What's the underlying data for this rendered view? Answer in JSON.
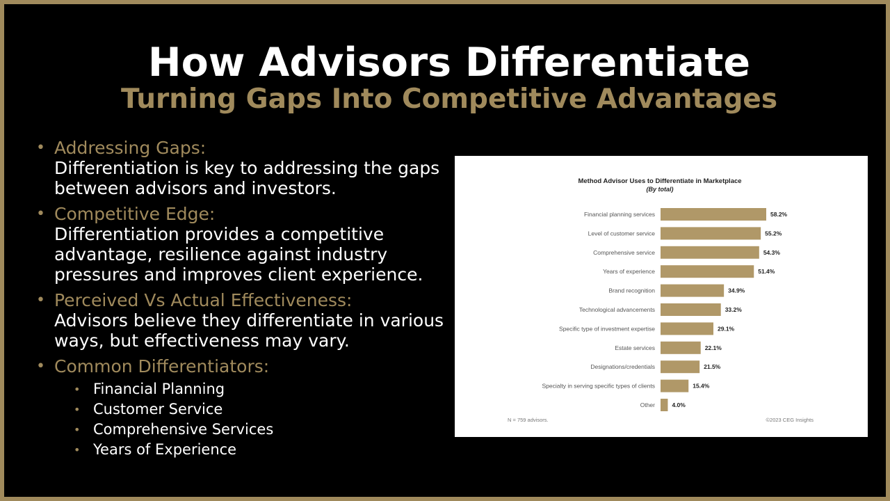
{
  "slide": {
    "title": "How Advisors Differentiate",
    "subtitle": "Turning Gaps Into Competitive Advantages"
  },
  "bullets": [
    {
      "heading": "Addressing Gaps:",
      "text": "Differentiation is key to addressing the gaps between advisors and investors."
    },
    {
      "heading": "Competitive Edge:",
      "text": "Differentiation provides a competitive advantage, resilience against industry pressures and improves client experience."
    },
    {
      "heading": "Perceived Vs Actual Effectiveness:",
      "text": "Advisors believe they differentiate in various ways, but effectiveness may vary."
    },
    {
      "heading": "Common Differentiators:",
      "items": [
        "Financial Planning",
        "Customer Service",
        "Comprehensive Services",
        "Years of Experience"
      ]
    }
  ],
  "colors": {
    "accent": "#a08a5c",
    "bar": "#b09868",
    "background": "#000000",
    "border": "#a08a5c"
  },
  "chart_data": {
    "type": "bar",
    "orientation": "horizontal",
    "title": "Method Advisor Uses to Differentiate in Marketplace",
    "subtitle": "(By total)",
    "categories": [
      "Financial planning services",
      "Level of customer service",
      "Comprehensive service",
      "Years of experience",
      "Brand recognition",
      "Technological advancements",
      "Specific type of investment expertise",
      "Estate services",
      "Designations/credentials",
      "Specialty in serving specific types of clients",
      "Other"
    ],
    "values": [
      58.2,
      55.2,
      54.3,
      51.4,
      34.9,
      33.2,
      29.1,
      22.1,
      21.5,
      15.4,
      4.0
    ],
    "value_labels": [
      "58.2%",
      "55.2%",
      "54.3%",
      "51.4%",
      "34.9%",
      "33.2%",
      "29.1%",
      "22.1%",
      "21.5%",
      "15.4%",
      "4.0%"
    ],
    "footnote": "N = 759 advisors.",
    "source": "©2023 CEG Insights",
    "grid": false,
    "legend": false
  }
}
